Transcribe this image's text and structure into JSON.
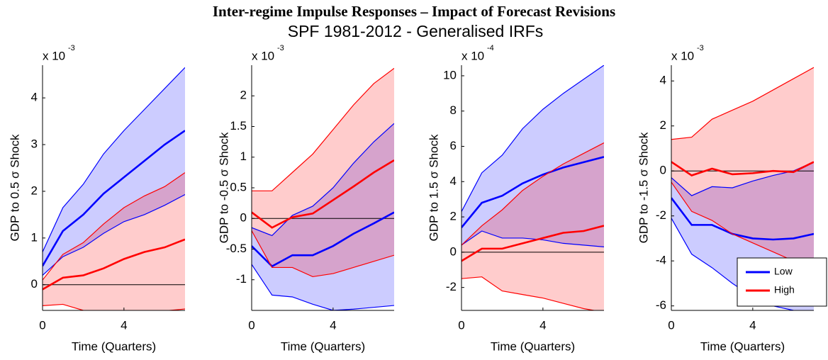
{
  "title": "Inter-regime Impulse Responses – Impact of Forecast Revisions",
  "subtitle": "SPF 1981-2012 - Generalised IRFs",
  "chart_data": [
    {
      "type": "line",
      "ylabel": "GDP to 0.5 σ Shock",
      "xlabel": "Time (Quarters)",
      "scale_label": "x 10",
      "scale_exponent": "-3",
      "x": [
        0,
        1,
        2,
        3,
        4,
        5,
        6,
        7
      ],
      "xlim": [
        0,
        7
      ],
      "xticks": [
        0,
        4
      ],
      "ylim": [
        -0.55,
        4.7
      ],
      "yticks": [
        0,
        1,
        2,
        3,
        4
      ],
      "zero_line": true,
      "series": [
        {
          "color": "#0000ff",
          "values": [
            0.4,
            1.15,
            1.5,
            1.95,
            2.3,
            2.65,
            3.0,
            3.3
          ],
          "lower": [
            0.2,
            0.6,
            0.8,
            1.1,
            1.35,
            1.5,
            1.7,
            1.93
          ],
          "upper": [
            0.7,
            1.65,
            2.15,
            2.8,
            3.3,
            3.75,
            4.2,
            4.65
          ]
        },
        {
          "color": "#ff0000",
          "values": [
            -0.1,
            0.15,
            0.2,
            0.35,
            0.55,
            0.7,
            0.8,
            0.97
          ],
          "lower": [
            -0.45,
            -0.42,
            -0.55,
            -0.56,
            -0.56,
            -0.56,
            -0.56,
            -0.52
          ],
          "upper": [
            0.1,
            0.65,
            0.9,
            1.3,
            1.65,
            1.9,
            2.1,
            2.4
          ]
        }
      ]
    },
    {
      "type": "line",
      "ylabel": "GDP to -0.5 σ Shock",
      "xlabel": "Time (Quarters)",
      "scale_label": "x 10",
      "scale_exponent": "-3",
      "x": [
        0,
        1,
        2,
        3,
        4,
        5,
        6,
        7
      ],
      "xlim": [
        0,
        7
      ],
      "xticks": [
        0,
        4
      ],
      "ylim": [
        -1.5,
        2.5
      ],
      "yticks": [
        -1,
        -0.5,
        0,
        0.5,
        1,
        1.5,
        2
      ],
      "zero_line": true,
      "series": [
        {
          "color": "#0000ff",
          "values": [
            -0.45,
            -0.78,
            -0.6,
            -0.6,
            -0.45,
            -0.25,
            -0.08,
            0.1
          ],
          "lower": [
            -0.75,
            -1.25,
            -1.28,
            -1.4,
            -1.5,
            -1.48,
            -1.45,
            -1.42
          ],
          "upper": [
            -0.15,
            -0.28,
            0.05,
            0.2,
            0.5,
            0.9,
            1.25,
            1.55
          ]
        },
        {
          "color": "#ff0000",
          "values": [
            0.1,
            -0.15,
            0.02,
            0.08,
            0.3,
            0.52,
            0.75,
            0.95
          ],
          "lower": [
            -0.2,
            -0.8,
            -0.8,
            -0.95,
            -0.9,
            -0.8,
            -0.7,
            -0.6
          ],
          "upper": [
            0.45,
            0.45,
            0.75,
            1.05,
            1.45,
            1.85,
            2.2,
            2.45
          ]
        }
      ]
    },
    {
      "type": "line",
      "ylabel": "GDP to 1.5 σ Shock",
      "xlabel": "Time (Quarters)",
      "scale_label": "x 10",
      "scale_exponent": "-4",
      "x": [
        0,
        1,
        2,
        3,
        4,
        5,
        6,
        7
      ],
      "xlim": [
        0,
        7
      ],
      "xticks": [
        0,
        4
      ],
      "ylim": [
        -3.3,
        10.6
      ],
      "yticks": [
        -2,
        0,
        2,
        4,
        6,
        8,
        10
      ],
      "zero_line": true,
      "series": [
        {
          "color": "#0000ff",
          "values": [
            1.4,
            2.8,
            3.2,
            3.9,
            4.4,
            4.8,
            5.1,
            5.4
          ],
          "lower": [
            0.4,
            1.2,
            0.8,
            0.8,
            0.7,
            0.5,
            0.4,
            0.3
          ],
          "upper": [
            2.3,
            4.5,
            5.5,
            7,
            8.1,
            9,
            9.8,
            10.6
          ]
        },
        {
          "color": "#ff0000",
          "values": [
            -0.5,
            0.2,
            0.2,
            0.5,
            0.8,
            1.1,
            1.2,
            1.5
          ],
          "lower": [
            -1.5,
            -1.4,
            -2.2,
            -2.4,
            -2.6,
            -2.9,
            -3.2,
            -3.4
          ],
          "upper": [
            0.4,
            1.5,
            2.4,
            3.5,
            4.3,
            5.0,
            5.6,
            6.2
          ]
        }
      ]
    },
    {
      "type": "line",
      "ylabel": "GDP to -1.5 σ Shock",
      "xlabel": "Time (Quarters)",
      "scale_label": "x 10",
      "scale_exponent": "-3",
      "x": [
        0,
        1,
        2,
        3,
        4,
        5,
        6,
        7
      ],
      "xlim": [
        0,
        7
      ],
      "xticks": [
        0,
        4
      ],
      "ylim": [
        -6.2,
        4.7
      ],
      "yticks": [
        -6,
        -4,
        -2,
        0,
        2,
        4
      ],
      "zero_line": true,
      "legend": "lower right",
      "series": [
        {
          "name": "Low",
          "color": "#0000ff",
          "values": [
            -1.2,
            -2.4,
            -2.4,
            -2.8,
            -3.0,
            -3.05,
            -3.0,
            -2.8
          ],
          "lower": [
            -2.1,
            -3.7,
            -4.3,
            -5,
            -5.6,
            -6,
            -6.2,
            -6.3
          ],
          "upper": [
            -0.3,
            -1.1,
            -0.7,
            -0.75,
            -0.45,
            -0.2,
            0,
            0.4
          ]
        },
        {
          "name": "High",
          "color": "#ff0000",
          "values": [
            0.4,
            -0.2,
            0.1,
            -0.15,
            -0.1,
            0,
            -0.05,
            0.4
          ],
          "lower": [
            -0.5,
            -1.8,
            -2.2,
            -2.8,
            -3.2,
            -3.6,
            -4,
            -4.3
          ],
          "upper": [
            1.4,
            1.5,
            2.3,
            2.7,
            3.1,
            3.6,
            4.1,
            4.6
          ]
        }
      ]
    }
  ]
}
